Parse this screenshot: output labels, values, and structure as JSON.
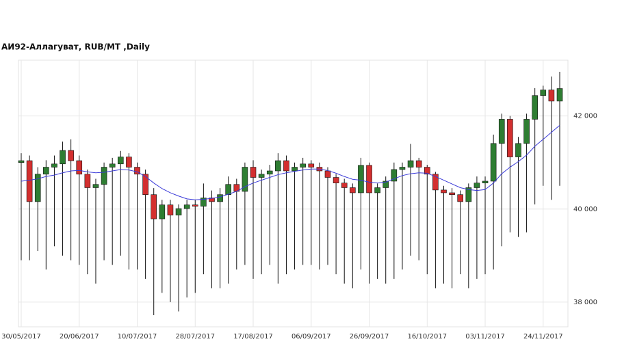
{
  "chart_data": {
    "type": "candlestick",
    "title": "АИ92-Аллагуват,  RUB/MT ,Daily",
    "categories": [
      "30/05/2017",
      null,
      null,
      null,
      null,
      null,
      null,
      "20/06/2017",
      null,
      null,
      null,
      null,
      null,
      null,
      "10/07/2017",
      null,
      null,
      null,
      null,
      null,
      null,
      "28/07/2017",
      null,
      null,
      null,
      null,
      null,
      null,
      "17/08/2017",
      null,
      null,
      null,
      null,
      null,
      null,
      "06/09/2017",
      null,
      null,
      null,
      null,
      null,
      null,
      "26/09/2017",
      null,
      null,
      null,
      null,
      null,
      null,
      "16/10/2017",
      null,
      null,
      null,
      null,
      null,
      null,
      "03/11/2017",
      null,
      null,
      null,
      null,
      null,
      null,
      "24/11/2017",
      null,
      null
    ],
    "open": [
      41000,
      41040,
      40160,
      40750,
      40900,
      40970,
      41260,
      41040,
      40750,
      40460,
      40530,
      40900,
      40970,
      41120,
      40900,
      40750,
      40310,
      39790,
      40090,
      39870,
      40010,
      40090,
      40060,
      40240,
      40160,
      40310,
      40530,
      40380,
      40900,
      40680,
      40750,
      40820,
      41040,
      40820,
      40900,
      40970,
      40900,
      40820,
      40680,
      40560,
      40460,
      40350,
      40940,
      40350,
      40460,
      40600,
      40850,
      40900,
      41040,
      40900,
      40750,
      40410,
      40350,
      40310,
      40160,
      40460,
      40560,
      40600,
      41410,
      41930,
      41120,
      41410,
      41930,
      42440,
      42560,
      42320
    ],
    "high": [
      41200,
      41150,
      40900,
      41050,
      41150,
      41450,
      41500,
      41150,
      40850,
      40650,
      41000,
      41100,
      41250,
      41200,
      41000,
      40850,
      40450,
      40200,
      40200,
      40100,
      40200,
      40200,
      40550,
      40400,
      40450,
      40700,
      40650,
      41000,
      41050,
      40850,
      40950,
      41200,
      41150,
      41000,
      41100,
      41050,
      41000,
      40900,
      40750,
      40650,
      40550,
      41100,
      41000,
      40550,
      40700,
      41000,
      41000,
      41400,
      41100,
      40950,
      40800,
      40500,
      40450,
      40400,
      40550,
      40700,
      40700,
      41600,
      42050,
      42000,
      41550,
      42050,
      42600,
      42650,
      42850,
      42950
    ],
    "low": [
      38900,
      38900,
      39100,
      38700,
      39200,
      39000,
      38900,
      38800,
      38600,
      38400,
      38900,
      38800,
      39000,
      38700,
      38700,
      38500,
      37720,
      38200,
      38000,
      37800,
      38100,
      38200,
      38600,
      38300,
      38300,
      38400,
      38700,
      38800,
      38500,
      38600,
      38800,
      38400,
      38600,
      38700,
      38800,
      38800,
      38700,
      38800,
      38600,
      38400,
      38300,
      38700,
      38400,
      38500,
      38400,
      38500,
      38700,
      39000,
      38900,
      38600,
      38300,
      38400,
      38300,
      38600,
      38300,
      38500,
      38600,
      38700,
      39200,
      39500,
      39400,
      39500,
      40100,
      40500,
      40200,
      40500
    ],
    "close": [
      41040,
      40160,
      40750,
      40900,
      40970,
      41260,
      41040,
      40750,
      40460,
      40530,
      40900,
      40970,
      41120,
      40900,
      40750,
      40310,
      39790,
      40090,
      39870,
      40010,
      40090,
      40060,
      40240,
      40160,
      40310,
      40530,
      40380,
      40900,
      40680,
      40750,
      40820,
      41040,
      40820,
      40900,
      40970,
      40900,
      40820,
      40680,
      40560,
      40460,
      40350,
      40940,
      40350,
      40460,
      40600,
      40850,
      40900,
      41040,
      40900,
      40750,
      40410,
      40350,
      40310,
      40160,
      40460,
      40560,
      40600,
      41410,
      41930,
      41120,
      41410,
      41930,
      42440,
      42560,
      42320,
      42590
    ],
    "ma_values": [
      40600,
      40620,
      40650,
      40700,
      40730,
      40780,
      40820,
      40830,
      40800,
      40780,
      40790,
      40820,
      40850,
      40840,
      40800,
      40700,
      40560,
      40440,
      40350,
      40280,
      40220,
      40200,
      40210,
      40230,
      40260,
      40320,
      40380,
      40480,
      40560,
      40620,
      40680,
      40740,
      40780,
      40810,
      40840,
      40860,
      40860,
      40830,
      40770,
      40700,
      40640,
      40620,
      40580,
      40560,
      40580,
      40650,
      40720,
      40760,
      40780,
      40770,
      40700,
      40620,
      40540,
      40460,
      40420,
      40400,
      40420,
      40560,
      40760,
      40900,
      41020,
      41160,
      41350,
      41500,
      41650,
      41800
    ],
    "ma_color": "#3a3ad8",
    "up_color": "#2e7d32",
    "down_color": "#d32f2f",
    "ylim": [
      37470,
      43200
    ],
    "yticks": [
      {
        "value": 38000,
        "label": "38 000"
      },
      {
        "value": 40000,
        "label": "40 000"
      },
      {
        "value": 42000,
        "label": "42 000"
      }
    ],
    "grid": true
  }
}
